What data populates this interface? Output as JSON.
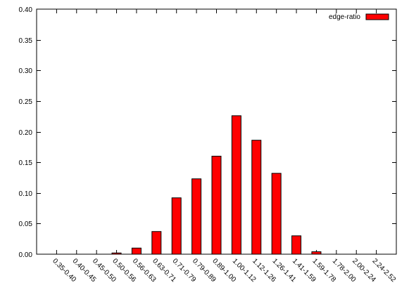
{
  "chart_data": {
    "type": "bar",
    "title": "",
    "xlabel": "",
    "ylabel": "",
    "ylim": [
      0,
      0.4
    ],
    "y_ticks": [
      0.0,
      0.05,
      0.1,
      0.15,
      0.2,
      0.25,
      0.3,
      0.35,
      0.4
    ],
    "y_tick_labels": [
      "0.00",
      "0.05",
      "0.10",
      "0.15",
      "0.20",
      "0.25",
      "0.30",
      "0.35",
      "0.40"
    ],
    "grid": false,
    "legend_position": "top-right",
    "bar_color": "#ff0000",
    "bar_edge_color": "#000000",
    "categories": [
      "0.35-0.40",
      "0.40-0.45",
      "0.45-0.50",
      "0.50-0.56",
      "0.56-0.63",
      "0.63-0.71",
      "0.71-0.79",
      "0.79-0.89",
      "0.89-1.00",
      "1.00-1.12",
      "1.12-1.26",
      "1.26-1.41",
      "1.41-1.59",
      "1.59-1.78",
      "1.78-2.00",
      "2.00-2.24",
      "2.24-2.52"
    ],
    "series": [
      {
        "name": "edge-ratio",
        "values": [
          0.0,
          0.0,
          0.0,
          0.002,
          0.01,
          0.037,
          0.092,
          0.123,
          0.16,
          0.226,
          0.186,
          0.132,
          0.03,
          0.004,
          0.0,
          0.0,
          0.0
        ]
      }
    ]
  }
}
